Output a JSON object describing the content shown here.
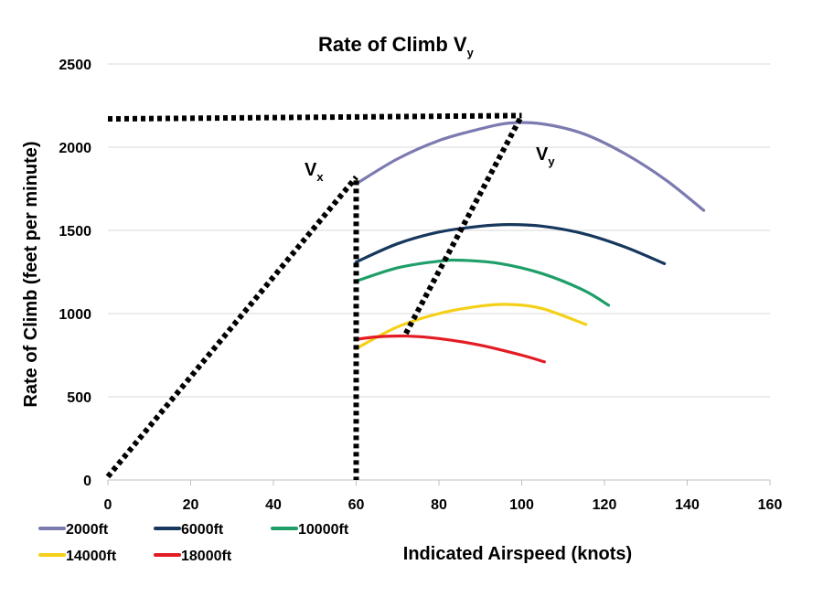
{
  "chart_data": {
    "type": "line",
    "title": "Rate of Climb V",
    "title_subscript": "y",
    "xlabel": "Indicated Airspeed (knots)",
    "ylabel": "Rate of Climb (feet per minute)",
    "xlim": [
      0,
      160
    ],
    "ylim": [
      0,
      2500
    ],
    "x_ticks": [
      0,
      20,
      40,
      60,
      80,
      100,
      120,
      140,
      160
    ],
    "y_ticks": [
      0,
      500,
      1000,
      1500,
      2000,
      2500
    ],
    "grid": "horizontal",
    "legend_position": "bottom-left",
    "series": [
      {
        "name": "2000ft",
        "color": "#7b7bb0",
        "x": [
          60,
          70,
          80,
          90,
          97,
          105,
          115,
          125,
          135,
          144
        ],
        "y": [
          1780,
          1930,
          2040,
          2110,
          2145,
          2140,
          2080,
          1960,
          1800,
          1620
        ]
      },
      {
        "name": "6000ft",
        "color": "#17375e",
        "x": [
          60,
          70,
          80,
          90,
          97,
          105,
          115,
          125,
          134.5
        ],
        "y": [
          1310,
          1420,
          1490,
          1525,
          1535,
          1525,
          1480,
          1400,
          1300
        ]
      },
      {
        "name": "10000ft",
        "color": "#1e9e68",
        "x": [
          60,
          70,
          80,
          86,
          95,
          105,
          115,
          121
        ],
        "y": [
          1195,
          1275,
          1315,
          1320,
          1300,
          1240,
          1140,
          1050
        ]
      },
      {
        "name": "14000ft",
        "color": "#f5d018",
        "x": [
          60,
          70,
          80,
          90,
          97,
          105,
          115.5
        ],
        "y": [
          790,
          920,
          1000,
          1045,
          1055,
          1030,
          935
        ]
      },
      {
        "name": "18000ft",
        "color": "#e31b23",
        "x": [
          60,
          65,
          72,
          80,
          90,
          100,
          105.5
        ],
        "y": [
          845,
          860,
          865,
          850,
          810,
          750,
          710
        ]
      }
    ],
    "annotations": {
      "vx_label": "V",
      "vx_sub": "x",
      "vy_label": "V",
      "vy_sub": "y",
      "dotted_lines": [
        {
          "from": [
            0,
            2170
          ],
          "to": [
            100,
            2190
          ]
        },
        {
          "from": [
            0,
            20
          ],
          "to": [
            60,
            1820
          ]
        },
        {
          "from": [
            60,
            1800
          ],
          "to": [
            60,
            0
          ]
        },
        {
          "from": [
            72,
            880
          ],
          "to": [
            100,
            2190
          ]
        }
      ]
    }
  }
}
